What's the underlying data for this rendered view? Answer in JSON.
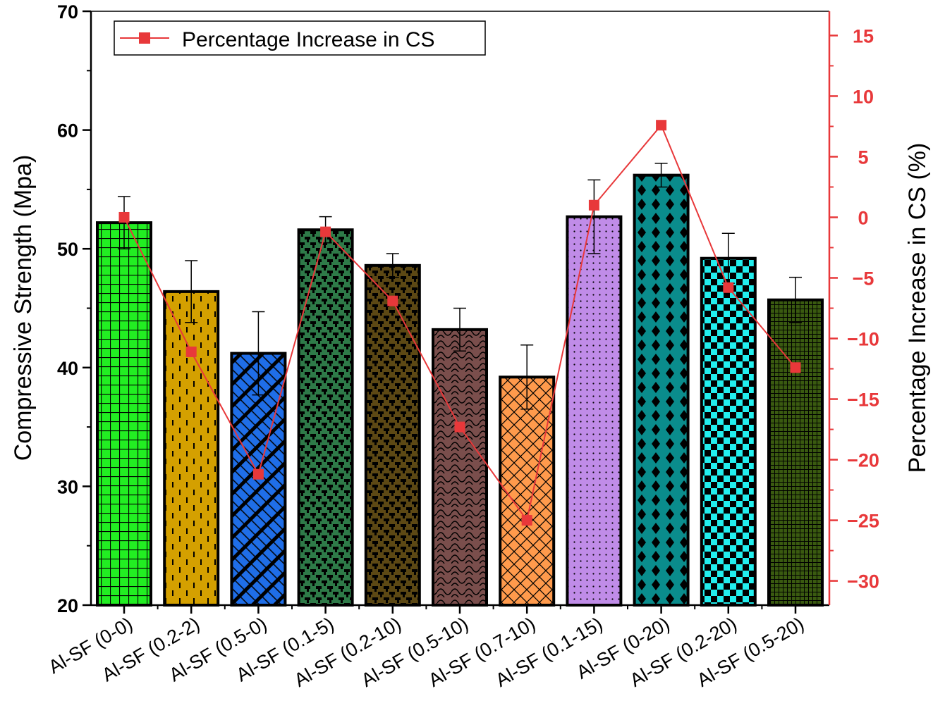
{
  "chart_data": {
    "type": "bar",
    "categories": [
      "Al-SF (0-0)",
      "Al-SF (0.2-2)",
      "Al-SF (0.5-0)",
      "Al-SF (0.1-5)",
      "Al-SF (0.2-10)",
      "Al-SF (0.5-10)",
      "Al-SF (0.7-10)",
      "Al-SF (0.1-15)",
      "Al-SF (0-20)",
      "Al-SF (0.2-20)",
      "Al-SF (0.5-20)"
    ],
    "series": [
      {
        "name": "Compressive Strength",
        "axis": "left",
        "values": [
          52.2,
          46.4,
          41.2,
          51.6,
          48.6,
          43.2,
          39.2,
          52.7,
          56.2,
          49.2,
          45.7
        ],
        "error": [
          2.2,
          2.6,
          3.5,
          1.1,
          1.0,
          1.8,
          2.7,
          3.1,
          1.0,
          2.1,
          1.9
        ],
        "colors": [
          "#22ee22",
          "#d4a000",
          "#1f6ee8",
          "#2e7a48",
          "#4a3a10",
          "#7a4e4c",
          "#ff9a4c",
          "#c08ce8",
          "#0a8c8c",
          "#22eeee",
          "#3a5a10"
        ],
        "patterns": [
          "grid",
          "dashes",
          "diagonal",
          "weave",
          "weave",
          "scales",
          "crosshatch",
          "dots",
          "diamonds",
          "checker",
          "finegrid"
        ]
      },
      {
        "name": "Percentage Increase in CS",
        "axis": "right",
        "type": "line",
        "color": "#e8383a",
        "values": [
          0,
          -11.1,
          -21.2,
          -1.2,
          -6.9,
          -17.3,
          -25,
          1,
          7.6,
          -5.8,
          -12.4
        ]
      }
    ],
    "ylabel": "Compressive Strength (Mpa)",
    "y2label": "Percentage Increase in CS (%)",
    "ylim": [
      20,
      70
    ],
    "y2lim": [
      -32,
      17
    ],
    "yticks": [
      "20",
      "30",
      "40",
      "50",
      "60",
      "70"
    ],
    "y2ticks": [
      "15",
      "10",
      "5",
      "0",
      "−5",
      "−10",
      "−15",
      "−20",
      "−25",
      "−30"
    ],
    "legend": {
      "entries": [
        "Percentage Increase in CS"
      ],
      "placement": "top-left"
    },
    "axis_color_right": "#e8383a"
  }
}
